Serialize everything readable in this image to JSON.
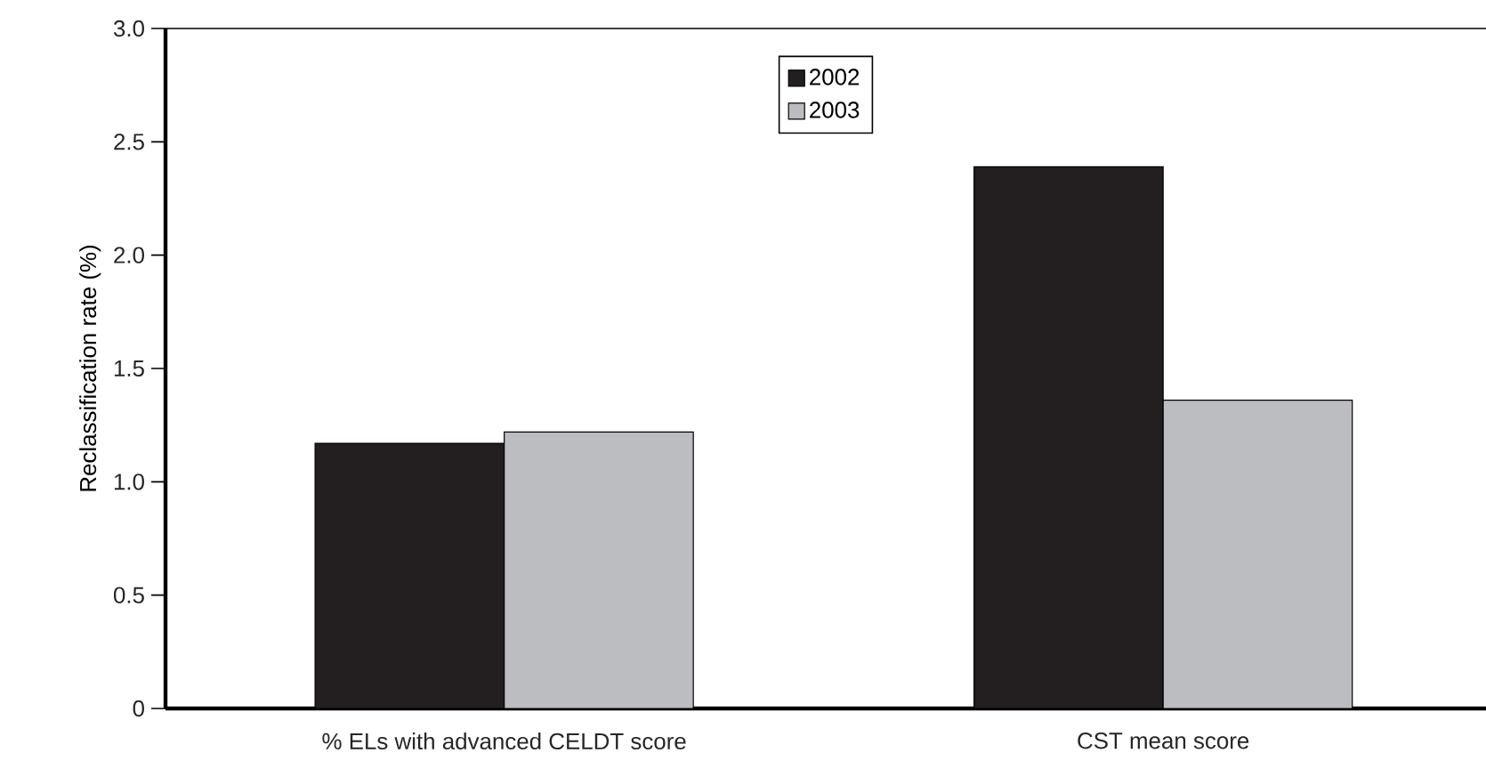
{
  "chart_data": {
    "type": "bar",
    "ylabel": "Reclassification rate (%)",
    "categories": [
      "% ELs with advanced CELDT score",
      "CST mean score"
    ],
    "series": [
      {
        "name": "2002",
        "color": "#231f20",
        "values": [
          1.17,
          2.39
        ]
      },
      {
        "name": "2003",
        "color": "#bcbdc0",
        "values": [
          1.22,
          1.36
        ]
      }
    ],
    "ylim": [
      0,
      3.0
    ],
    "yticks": [
      {
        "value": 0,
        "label": "0"
      },
      {
        "value": 0.5,
        "label": "0.5"
      },
      {
        "value": 1.0,
        "label": "1.0"
      },
      {
        "value": 1.5,
        "label": "1.5"
      },
      {
        "value": 2.0,
        "label": "2.0"
      },
      {
        "value": 2.5,
        "label": "2.5"
      },
      {
        "value": 3.0,
        "label": "3.0"
      }
    ],
    "grid": false,
    "legend": "top"
  }
}
